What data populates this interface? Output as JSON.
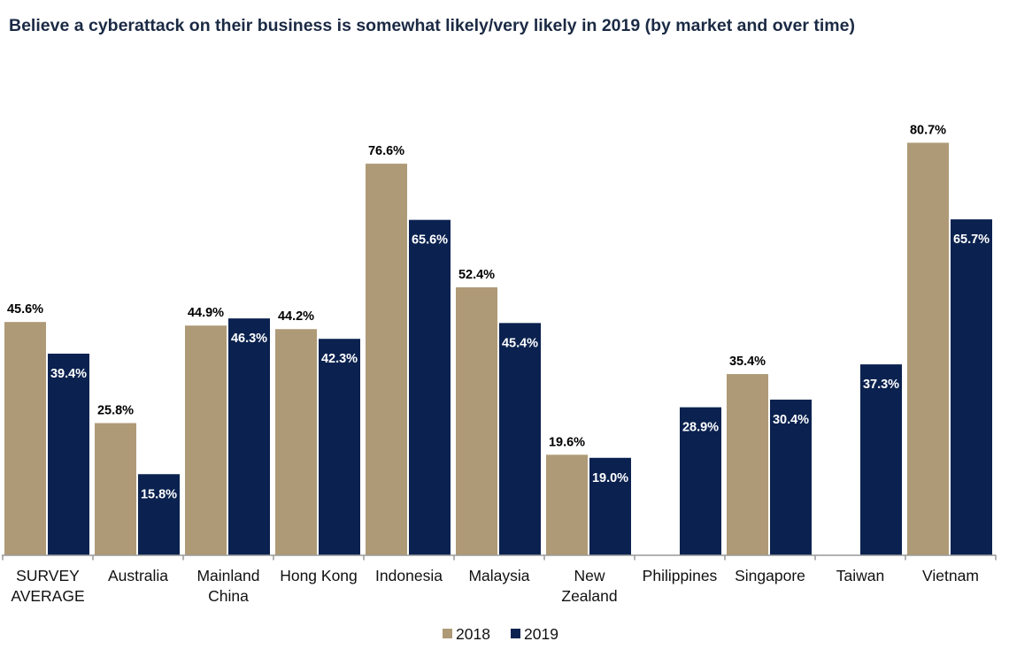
{
  "chart_data": {
    "type": "bar",
    "title": "Believe a cyberattack on their business is somewhat likely/very likely in 2019 (by market and over time)",
    "categories": [
      "SURVEY AVERAGE",
      "Australia",
      "Mainland China",
      "Hong Kong",
      "Indonesia",
      "Malaysia",
      "New Zealand",
      "Philippines",
      "Singapore",
      "Taiwan",
      "Vietnam"
    ],
    "category_lines": [
      [
        "SURVEY",
        "AVERAGE"
      ],
      [
        "Australia"
      ],
      [
        "Mainland",
        "China"
      ],
      [
        "Hong Kong"
      ],
      [
        "Indonesia"
      ],
      [
        "Malaysia"
      ],
      [
        "New",
        "Zealand"
      ],
      [
        "Philippines"
      ],
      [
        "Singapore"
      ],
      [
        "Taiwan"
      ],
      [
        "Vietnam"
      ]
    ],
    "series": [
      {
        "name": "2018",
        "color": "#ae9a76",
        "values": [
          45.6,
          25.8,
          44.9,
          44.2,
          76.6,
          52.4,
          19.6,
          null,
          35.4,
          null,
          80.7
        ],
        "labels": [
          "45.6%",
          "25.8%",
          "44.9%",
          "44.2%",
          "76.6%",
          "52.4%",
          "19.6%",
          null,
          "35.4%",
          null,
          "80.7%"
        ]
      },
      {
        "name": "2019",
        "color": "#0b2250",
        "values": [
          39.4,
          15.8,
          46.3,
          42.3,
          65.6,
          45.4,
          19.0,
          28.9,
          30.4,
          37.3,
          65.7
        ],
        "labels": [
          "39.4%",
          "15.8%",
          "46.3%",
          "42.3%",
          "65.6%",
          "45.4%",
          "19.0%",
          "28.9%",
          "30.4%",
          "37.3%",
          "65.7%"
        ]
      }
    ],
    "unit": "%",
    "ylim": [
      0,
      85
    ],
    "grid": false,
    "legend_placement": "bottom"
  }
}
